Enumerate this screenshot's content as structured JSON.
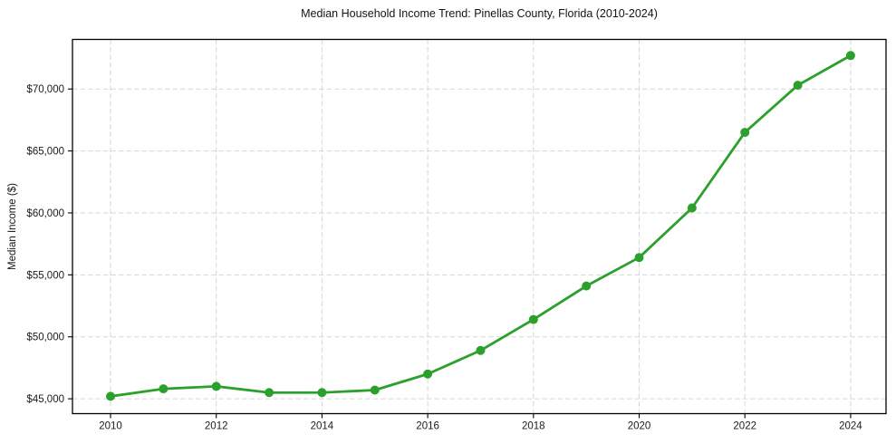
{
  "chart_data": {
    "type": "line",
    "title": "Median Household Income Trend: Pinellas County, Florida (2010-2024)",
    "xlabel": "",
    "ylabel": "Median Income ($)",
    "x": [
      2010,
      2011,
      2012,
      2013,
      2014,
      2015,
      2016,
      2017,
      2018,
      2019,
      2020,
      2021,
      2022,
      2023,
      2024
    ],
    "series": [
      {
        "name": "Median Household Income",
        "values": [
          45200,
          45800,
          46000,
          45500,
          45500,
          45700,
          47000,
          48900,
          51400,
          54100,
          56400,
          60400,
          66500,
          70300,
          72700
        ]
      }
    ],
    "xlim": [
      2009.28,
      2024.67
    ],
    "ylim": [
      43800,
      74000
    ],
    "x_ticks": [
      2010,
      2012,
      2014,
      2016,
      2018,
      2020,
      2022,
      2024
    ],
    "x_tick_labels": [
      "2010",
      "2012",
      "2014",
      "2016",
      "2018",
      "2020",
      "2022",
      "2024"
    ],
    "y_ticks": [
      45000,
      50000,
      55000,
      60000,
      65000,
      70000
    ],
    "y_tick_labels": [
      "$45,000",
      "$50,000",
      "$55,000",
      "$60,000",
      "$65,000",
      "$70,000"
    ],
    "grid": true,
    "legend": false,
    "marker": "circle"
  },
  "colors": {
    "line": "#2ca02c",
    "marker": "#2ca02c",
    "grid": "#d6d6d6",
    "axis": "#000000",
    "tick_label": "#1a1a1a",
    "title": "#141414",
    "background": "#ffffff"
  }
}
